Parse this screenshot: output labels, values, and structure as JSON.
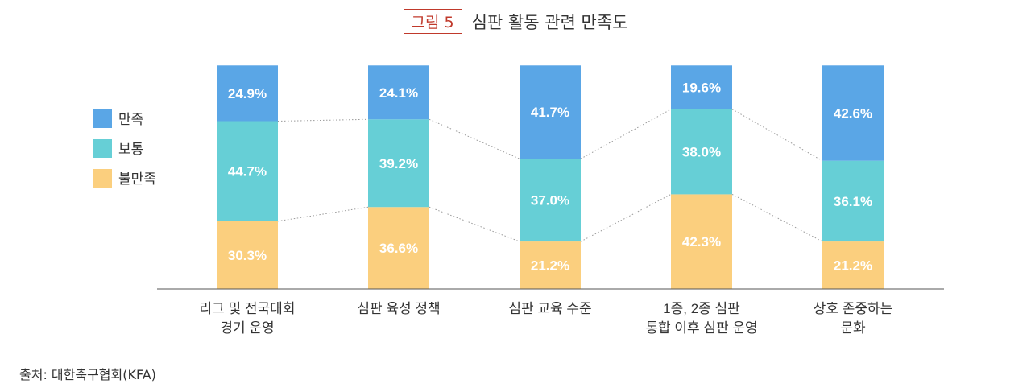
{
  "figure": {
    "label": "그림 5",
    "title": "심판 활동 관련 만족도"
  },
  "source": "출처: 대한축구협회(KFA)",
  "colors": {
    "satisfied": "#5aa6e6",
    "neutral": "#66cfd6",
    "dissatisfied": "#fbcf7e",
    "accent": "#c0392b"
  },
  "chart_data": {
    "type": "bar",
    "stacked": true,
    "categories": [
      [
        "리그 및 전국대회",
        "경기 운영"
      ],
      [
        "심판 육성 정책"
      ],
      [
        "심판 교육 수준"
      ],
      [
        "1종, 2종 심판",
        "통합 이후 심판 운영"
      ],
      [
        "상호 존중하는",
        "문화"
      ]
    ],
    "series": [
      {
        "name": "불만족",
        "color": "#fbcf7e",
        "values": [
          30.3,
          36.6,
          21.2,
          42.3,
          21.2
        ],
        "labels": [
          "30.3%",
          "36.6%",
          "21.2%",
          "42.3%",
          "21.2%"
        ]
      },
      {
        "name": "보통",
        "color": "#66cfd6",
        "values": [
          44.7,
          39.2,
          37.0,
          38.0,
          36.1
        ],
        "labels": [
          "44.7%",
          "39.2%",
          "37.0%",
          "38.0%",
          "36.1%"
        ]
      },
      {
        "name": "만족",
        "color": "#5aa6e6",
        "values": [
          24.9,
          24.1,
          41.7,
          19.6,
          42.6
        ],
        "labels": [
          "24.9%",
          "24.1%",
          "41.7%",
          "19.6%",
          "42.6%"
        ]
      }
    ],
    "legend": {
      "position": "left",
      "order": [
        "만족",
        "보통",
        "불만족"
      ]
    },
    "ylim": [
      0,
      100
    ],
    "grid": false,
    "connector_lines": true
  }
}
